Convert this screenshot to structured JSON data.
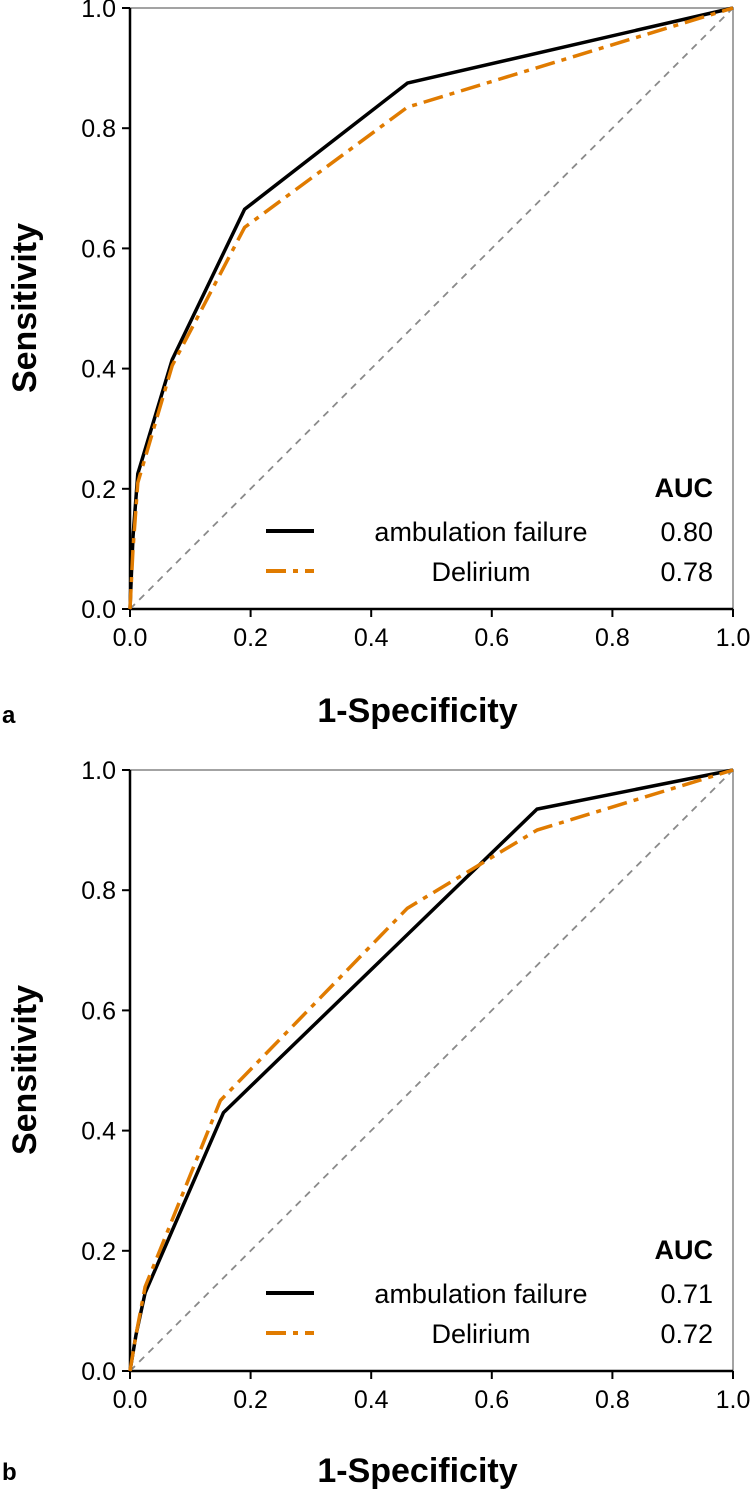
{
  "colors": {
    "solid": "#000000",
    "dashdot": "#e07b00"
  },
  "chart_data": [
    {
      "panel": "a",
      "type": "line",
      "xlabel": "1-Specificity",
      "ylabel": "Sensitivity",
      "xlim": [
        0,
        1
      ],
      "ylim": [
        0,
        1
      ],
      "xticks": [
        "0.0",
        "0.2",
        "0.4",
        "0.6",
        "0.8",
        "1.0"
      ],
      "yticks": [
        "0.0",
        "0.2",
        "0.4",
        "0.6",
        "0.8",
        "1.0"
      ],
      "legend_title": "AUC",
      "legend_position": "bottom-right",
      "series": [
        {
          "name": "ambulation failure",
          "auc": "0.80",
          "style": "solid",
          "x": [
            0,
            0.002,
            0.005,
            0.013,
            0.07,
            0.19,
            0.46,
            1.0
          ],
          "y": [
            0,
            0.05,
            0.12,
            0.225,
            0.415,
            0.665,
            0.875,
            1.0
          ]
        },
        {
          "name": "Delirium",
          "auc": "0.78",
          "style": "dashdot",
          "x": [
            0,
            0.002,
            0.005,
            0.013,
            0.07,
            0.19,
            0.46,
            1.0
          ],
          "y": [
            0,
            0.04,
            0.1,
            0.21,
            0.405,
            0.635,
            0.835,
            1.0
          ]
        }
      ]
    },
    {
      "panel": "b",
      "type": "line",
      "xlabel": "1-Specificity",
      "ylabel": "Sensitivity",
      "xlim": [
        0,
        1
      ],
      "ylim": [
        0,
        1
      ],
      "xticks": [
        "0.0",
        "0.2",
        "0.4",
        "0.6",
        "0.8",
        "1.0"
      ],
      "yticks": [
        "0.0",
        "0.2",
        "0.4",
        "0.6",
        "0.8",
        "1.0"
      ],
      "legend_title": "AUC",
      "legend_position": "bottom-right",
      "series": [
        {
          "name": "ambulation failure",
          "auc": "0.71",
          "style": "solid",
          "x": [
            0,
            0.01,
            0.025,
            0.155,
            0.675,
            1.0
          ],
          "y": [
            0,
            0.06,
            0.13,
            0.43,
            0.935,
            1.0
          ]
        },
        {
          "name": "Delirium",
          "auc": "0.72",
          "style": "dashdot",
          "x": [
            0,
            0.01,
            0.025,
            0.15,
            0.46,
            0.675,
            1.0
          ],
          "y": [
            0,
            0.06,
            0.14,
            0.45,
            0.77,
            0.9,
            1.0
          ]
        }
      ]
    }
  ]
}
